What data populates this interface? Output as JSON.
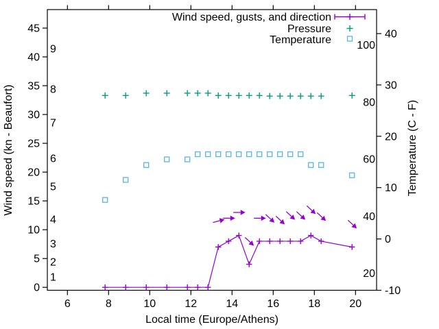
{
  "chart_data": {
    "type": "line",
    "title": "",
    "xlabel": "Local time (Europe/Athens)",
    "ylabel_left": "Wind speed (kn - Beaufort)",
    "ylabel_right": "Temperature (C - F)",
    "x_range_hours": [
      5,
      21
    ],
    "grid": false,
    "legend_position": "top-right-inside",
    "colors": {
      "wind": "#9400d3",
      "pressure": "#009e73",
      "temperature": "#56b4e9",
      "axis": "#000000"
    },
    "axes": {
      "x_ticks": [
        6,
        8,
        10,
        12,
        14,
        16,
        18,
        20
      ],
      "left_kn_ticks": [
        0,
        5,
        10,
        15,
        20,
        25,
        30,
        35,
        40,
        45
      ],
      "left_inner_beaufort_labels": [
        "1",
        "2",
        "3",
        "4",
        "5",
        "6",
        "7",
        "8",
        "9"
      ],
      "right_c_ticks": [
        -10,
        0,
        10,
        20,
        30,
        40
      ],
      "right_inner_f_labels": [
        20,
        40,
        60,
        80,
        100
      ]
    },
    "x_hours": [
      7.83,
      8.83,
      9.83,
      10.83,
      11.83,
      12.33,
      12.83,
      13.33,
      13.83,
      14.33,
      14.83,
      15.33,
      15.83,
      16.33,
      16.83,
      17.33,
      17.83,
      18.33,
      19.83
    ],
    "series": [
      {
        "name": "Wind speed, gusts, and direction",
        "type": "line-with-plus-markers",
        "color": "#9400d3",
        "axis": "left-kn",
        "values_kn": [
          0,
          0,
          0,
          0,
          0,
          0,
          0,
          7,
          8,
          9,
          4,
          8,
          8,
          8,
          8,
          8,
          9,
          8,
          7
        ]
      },
      {
        "name": "Wind gust / direction arrows",
        "type": "direction-arrows",
        "color": "#9400d3",
        "axis": "left-kn",
        "x_hours": [
          13.33,
          13.83,
          14.33,
          14.83,
          15.33,
          15.83,
          16.33,
          16.83,
          17.33,
          17.83,
          18.33,
          19.83
        ],
        "gust_kn": [
          11.5,
          12,
          13,
          8,
          12,
          12,
          11.7,
          12.5,
          12.5,
          13.5,
          12.3,
          11
        ],
        "direction": [
          "E",
          "E",
          "E",
          "SE",
          "E",
          "SE",
          "SE",
          "SE",
          "SE",
          "SE",
          "SE",
          "SE"
        ],
        "angle_deg_cw_from_east": [
          -15,
          0,
          0,
          43,
          0,
          43,
          43,
          43,
          43,
          43,
          43,
          43
        ]
      },
      {
        "name": "Pressure",
        "type": "plus-markers",
        "color": "#009e73",
        "axis": "unlabeled (values read on left kn scale)",
        "values_left_scale_equivalent": [
          33.3,
          33.3,
          33.7,
          33.7,
          33.7,
          33.7,
          33.7,
          33.3,
          33.3,
          33.3,
          33.3,
          33.3,
          33.2,
          33.2,
          33.2,
          33.2,
          33.2,
          33.2,
          33.3
        ],
        "note": "nearly constant flat row of markers"
      },
      {
        "name": "Temperature",
        "type": "open-square-markers",
        "color": "#56b4e9",
        "axis": "right-celsius",
        "values_c": [
          7.6,
          11.5,
          14.4,
          15.5,
          15.5,
          16.5,
          16.5,
          16.5,
          16.5,
          16.5,
          16.5,
          16.5,
          16.5,
          16.5,
          16.5,
          16.5,
          14.4,
          14.4,
          12.4
        ]
      }
    ],
    "legend": {
      "entries": [
        {
          "label": "Wind speed, gusts, and direction",
          "sample": "line-with-plus",
          "color": "#9400d3"
        },
        {
          "label": "Pressure",
          "sample": "plus",
          "color": "#009e73"
        },
        {
          "label": "Temperature",
          "sample": "open-square",
          "color": "#56b4e9"
        }
      ]
    }
  }
}
